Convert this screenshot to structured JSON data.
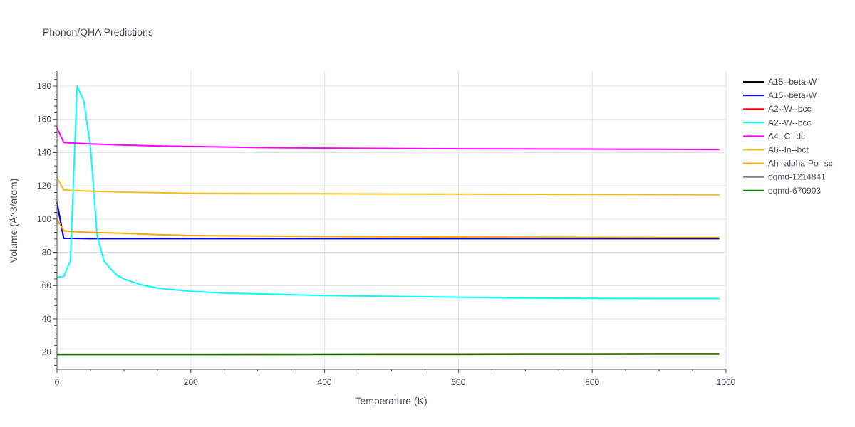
{
  "chart_data": {
    "type": "line",
    "title": "Phonon/QHA Predictions",
    "xlabel": "Temperature (K)",
    "ylabel": "Volume (Å^3/atom)",
    "xlim": [
      0,
      1000
    ],
    "ylim": [
      10,
      189
    ],
    "x_ticks": [
      0,
      200,
      400,
      600,
      800,
      1000
    ],
    "y_ticks": [
      20,
      40,
      60,
      80,
      100,
      120,
      140,
      160,
      180
    ],
    "grid": true,
    "legend_position": "right",
    "series": [
      {
        "name": "A15--beta-W",
        "color": "#000000",
        "x": [
          0,
          10,
          50,
          100,
          200,
          300,
          400,
          500,
          600,
          700,
          800,
          900,
          990
        ],
        "y": [
          110,
          88.4,
          88.3,
          88.3,
          88.3,
          88.3,
          88.3,
          88.3,
          88.3,
          88.3,
          88.3,
          88.3,
          88.3
        ]
      },
      {
        "name": "A15--beta-W",
        "color": "#0000ff",
        "x": [
          0,
          10,
          50,
          100,
          200,
          300,
          400,
          500,
          600,
          700,
          800,
          900,
          990
        ],
        "y": [
          110,
          88.4,
          88.3,
          88.3,
          88.3,
          88.3,
          88.3,
          88.3,
          88.3,
          88.3,
          88.3,
          88.3,
          88.3
        ]
      },
      {
        "name": "A2--W--bcc",
        "color": "#ff0000",
        "x": [
          0,
          100,
          200,
          300,
          400,
          500,
          600,
          700,
          800,
          900,
          990
        ],
        "y": [
          18.6,
          18.6,
          18.6,
          18.7,
          18.7,
          18.8,
          18.8,
          18.9,
          18.9,
          19.0,
          19.0
        ]
      },
      {
        "name": "A2--W--bcc",
        "color": "#00ffff",
        "x": [
          0,
          10,
          20,
          30,
          40,
          50,
          60,
          70,
          80,
          90,
          100,
          125,
          150,
          200,
          250,
          300,
          400,
          500,
          600,
          700,
          800,
          900,
          990
        ],
        "y": [
          65,
          65.5,
          75,
          180,
          171,
          143,
          90,
          75,
          70,
          66,
          64,
          60.5,
          58.5,
          56.5,
          55.5,
          55,
          54,
          53.5,
          53,
          52.5,
          52.3,
          52.2,
          52.2
        ]
      },
      {
        "name": "A4--C--dc",
        "color": "#ff00ff",
        "x": [
          0,
          10,
          50,
          100,
          150,
          200,
          300,
          400,
          500,
          600,
          700,
          800,
          900,
          990
        ],
        "y": [
          155,
          146,
          145.2,
          144.5,
          144,
          143.7,
          143,
          142.7,
          142.5,
          142.3,
          142.2,
          142.1,
          142,
          141.8
        ]
      },
      {
        "name": "A6--In--bct",
        "color": "#f0c020",
        "x": [
          0,
          10,
          50,
          100,
          200,
          300,
          400,
          500,
          600,
          700,
          800,
          900,
          990
        ],
        "y": [
          125,
          117.5,
          116.8,
          116.2,
          115.5,
          115.3,
          115.2,
          115.1,
          115,
          114.9,
          114.8,
          114.7,
          114.6
        ]
      },
      {
        "name": "Ah--alpha-Po--sc",
        "color": "#ffa500",
        "x": [
          0,
          10,
          20,
          50,
          100,
          150,
          200,
          300,
          400,
          500,
          600,
          700,
          800,
          900,
          990
        ],
        "y": [
          100,
          93,
          92.5,
          92,
          91.4,
          90.6,
          90.1,
          89.8,
          89.5,
          89.3,
          89.2,
          89.1,
          89,
          88.9,
          88.9
        ]
      },
      {
        "name": "oqmd-1214841",
        "color": "#808080",
        "x": [
          0,
          100,
          200,
          300,
          400,
          500,
          600,
          700,
          800,
          900,
          990
        ],
        "y": [
          18.5,
          18.5,
          18.5,
          18.5,
          18.6,
          18.6,
          18.6,
          18.7,
          18.7,
          18.8,
          18.8
        ]
      },
      {
        "name": "oqmd-670903",
        "color": "#008000",
        "x": [
          0,
          100,
          200,
          300,
          400,
          500,
          600,
          700,
          800,
          900,
          990
        ],
        "y": [
          18.4,
          18.4,
          18.4,
          18.4,
          18.5,
          18.5,
          18.5,
          18.6,
          18.6,
          18.7,
          18.7
        ]
      }
    ]
  }
}
